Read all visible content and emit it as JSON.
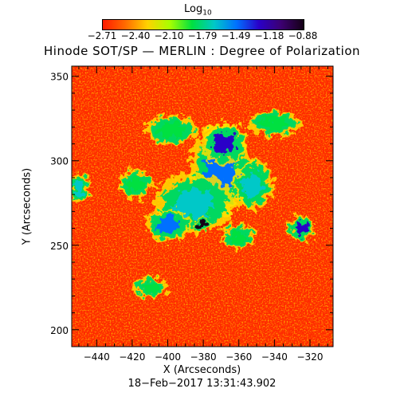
{
  "chart_data": {
    "type": "heatmap",
    "title": "Hinode SOT/SP — MERLIN : Degree of Polarization",
    "colorbar": {
      "label_main": "Log",
      "label_sub": "10",
      "tick_labels": [
        "−2.71",
        "−2.40",
        "−2.10",
        "−1.79",
        "−1.49",
        "−1.18",
        "−0.88"
      ],
      "range": [
        -2.71,
        -0.88
      ],
      "colors": [
        "#ff1a00",
        "#ff6a00",
        "#ffd200",
        "#a8ff00",
        "#00e040",
        "#00c8c8",
        "#0070ff",
        "#2a00c8",
        "#3c0070",
        "#140014"
      ]
    },
    "xlabel": "X (Arcseconds)",
    "ylabel": "Y (Arcseconds)",
    "x_tick_labels": [
      "−440",
      "−420",
      "−400",
      "−380",
      "−360",
      "−340",
      "−320"
    ],
    "x_ticks": [
      -440,
      -420,
      -400,
      -380,
      -360,
      -340,
      -320
    ],
    "y_tick_labels": [
      "200",
      "250",
      "300",
      "350"
    ],
    "y_ticks": [
      200,
      250,
      300,
      350
    ],
    "xlim": [
      -454,
      -307
    ],
    "ylim": [
      190,
      356
    ],
    "timestamp": "18−Feb−2017 13:31:43.902",
    "regions": [
      {
        "x": -370,
        "y": 295,
        "rx": 14,
        "ry": 22,
        "value": -1.4
      },
      {
        "x": -385,
        "y": 275,
        "rx": 18,
        "ry": 14,
        "value": -1.6
      },
      {
        "x": -400,
        "y": 262,
        "rx": 10,
        "ry": 8,
        "value": -1.5
      },
      {
        "x": -368,
        "y": 310,
        "rx": 10,
        "ry": 10,
        "value": -1.2
      },
      {
        "x": -352,
        "y": 286,
        "rx": 9,
        "ry": 12,
        "value": -1.7
      },
      {
        "x": -340,
        "y": 322,
        "rx": 12,
        "ry": 6,
        "value": -1.9
      },
      {
        "x": -398,
        "y": 318,
        "rx": 12,
        "ry": 7,
        "value": -1.8
      },
      {
        "x": -418,
        "y": 286,
        "rx": 8,
        "ry": 7,
        "value": -1.8
      },
      {
        "x": -450,
        "y": 284,
        "rx": 5,
        "ry": 7,
        "value": -1.6
      },
      {
        "x": -325,
        "y": 260,
        "rx": 6,
        "ry": 6,
        "value": -1.3
      },
      {
        "x": -410,
        "y": 225,
        "rx": 8,
        "ry": 5,
        "value": -1.8
      },
      {
        "x": -360,
        "y": 255,
        "rx": 8,
        "ry": 6,
        "value": -1.9
      },
      {
        "x": -380,
        "y": 262,
        "rx": 4,
        "ry": 4,
        "value": -0.95
      }
    ]
  }
}
